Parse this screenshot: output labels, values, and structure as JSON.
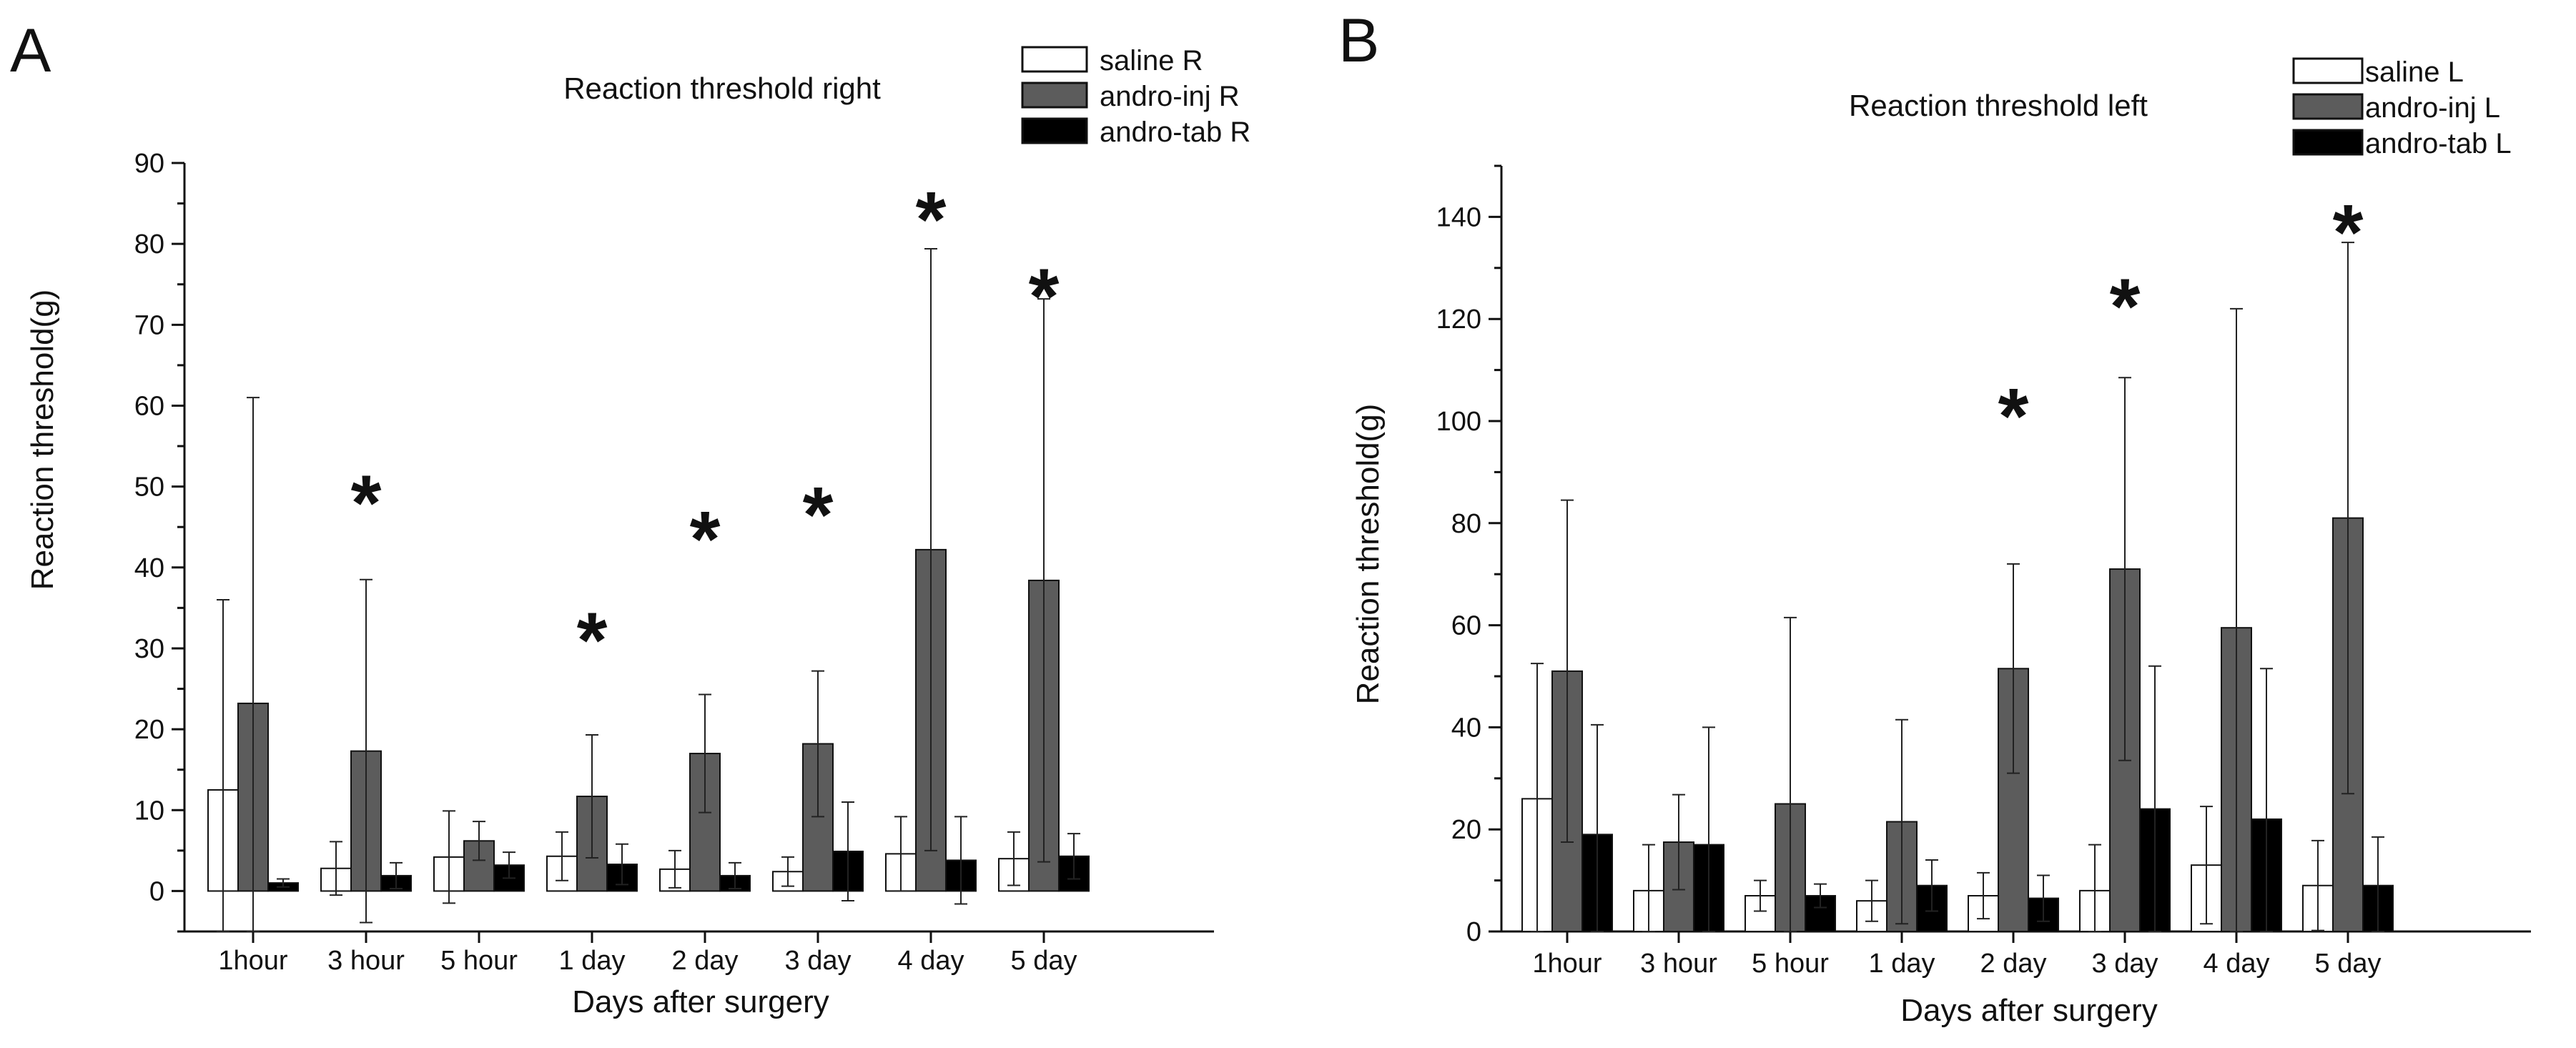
{
  "chart_data": [
    {
      "type": "bar",
      "panel_label": "A",
      "title": "Reaction threshold right",
      "xlabel": "Days after surgery",
      "ylabel": "Reaction threshold(g)",
      "ylim": [
        -5,
        90
      ],
      "yticks": [
        0,
        10,
        20,
        30,
        40,
        50,
        60,
        70,
        80,
        90
      ],
      "categories": [
        "1hour",
        "3 hour",
        "5 hour",
        "1 day",
        "2 day",
        "3 day",
        "4 day",
        "5 day"
      ],
      "series": [
        {
          "name": "saline R",
          "color": "#ffffff",
          "values": [
            12.5,
            2.8,
            4.2,
            4.3,
            2.7,
            2.4,
            4.6,
            4.0
          ],
          "errors": [
            23.5,
            3.3,
            5.7,
            3.0,
            2.3,
            1.8,
            4.6,
            3.3
          ]
        },
        {
          "name": "andro-inj  R",
          "color": "#5c5c5c",
          "values": [
            23.2,
            17.3,
            6.2,
            11.7,
            17.0,
            18.2,
            42.2,
            38.4
          ],
          "errors": [
            37.8,
            21.2,
            2.4,
            7.6,
            7.3,
            9.0,
            37.2,
            34.8
          ]
        },
        {
          "name": "andro-tab R",
          "color": "#000000",
          "values": [
            1.0,
            1.9,
            3.2,
            3.3,
            1.9,
            4.9,
            3.8,
            4.3
          ],
          "errors": [
            0.5,
            1.6,
            1.6,
            2.5,
            1.6,
            6.1,
            5.4,
            2.8
          ]
        }
      ],
      "significance": [
        {
          "category": "3 hour",
          "label": "*",
          "y": 48
        },
        {
          "category": "1 day",
          "label": "*",
          "y": 31
        },
        {
          "category": "2 day",
          "label": "*",
          "y": 43.5
        },
        {
          "category": "3 day",
          "label": "*",
          "y": 46.5
        },
        {
          "category": "4 day",
          "label": "*",
          "y": 83
        },
        {
          "category": "5 day",
          "label": "*",
          "y": 73.5
        }
      ]
    },
    {
      "type": "bar",
      "panel_label": "B",
      "title": "Reaction threshold left",
      "xlabel": "Days after surgery",
      "ylabel": "Reaction threshold(g)",
      "ylim": [
        0,
        150
      ],
      "yticks": [
        0,
        20,
        40,
        60,
        80,
        100,
        120,
        140
      ],
      "categories": [
        "1hour",
        "3 hour",
        "5 hour",
        "1 day",
        "2 day",
        "3 day",
        "4 day",
        "5 day"
      ],
      "series": [
        {
          "name": "saline L",
          "color": "#ffffff",
          "values": [
            26,
            8,
            7,
            6,
            7,
            8,
            13,
            9
          ],
          "errors": [
            26.5,
            9,
            3,
            4,
            4.5,
            9,
            11.5,
            8.8
          ]
        },
        {
          "name": "andro-inj  L",
          "color": "#5c5c5c",
          "values": [
            51,
            17.5,
            25,
            21.5,
            51.5,
            71,
            59.5,
            81
          ],
          "errors": [
            33.5,
            9.3,
            36.5,
            20,
            20.5,
            37.5,
            62.5,
            54
          ]
        },
        {
          "name": "andro-tab L",
          "color": "#000000",
          "values": [
            19,
            17,
            7,
            9,
            6.5,
            24,
            22,
            9
          ],
          "errors": [
            21.5,
            23,
            2.3,
            5,
            4.5,
            28,
            29.5,
            9.5
          ]
        }
      ],
      "significance": [
        {
          "category": "2 day",
          "label": "*",
          "y": 101
        },
        {
          "category": "3 day",
          "label": "*",
          "y": 122.5
        },
        {
          "category": "5 day",
          "label": "*",
          "y": 137
        }
      ]
    }
  ]
}
